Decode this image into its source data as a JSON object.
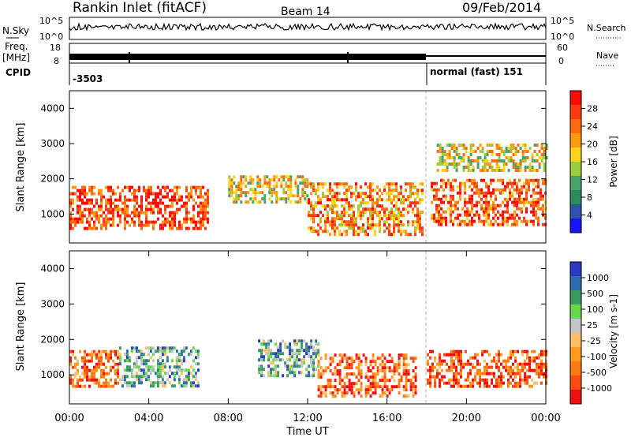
{
  "header": {
    "title": "Rankin Inlet (fitACF)",
    "beam": "Beam 14",
    "date": "09/Feb/2014"
  },
  "status_panels": {
    "nsky_label": "N.Sky",
    "nsky_ticks": [
      "10^5",
      "10^0"
    ],
    "nsearch_label": "N.Search",
    "nsearch_ticks": [
      "10^5",
      "10^0"
    ],
    "freq_label": "Freq.",
    "freq_unit": "[MHz]",
    "freq_ticks": [
      "18",
      "8"
    ],
    "nave_label": "Nave",
    "nave_ticks": [
      "60",
      "0"
    ],
    "cpid_label": "CPID",
    "cpid_value": "-3503",
    "mode_label": "normal (fast) 151",
    "mode_start_hour": 18
  },
  "colors": {
    "power_scale": [
      "#1414ff",
      "#2e50b4",
      "#2c8a5e",
      "#4aa26a",
      "#9ccc3c",
      "#ffd21c",
      "#ff9a10",
      "#ff6a10",
      "#ff3a10",
      "#ff0a0a"
    ],
    "velocity_scale": [
      "#ee1010",
      "#ff4a10",
      "#ff7a10",
      "#ff9a20",
      "#ffbf6a",
      "#c4c4c4",
      "#68d84a",
      "#3b9a5e",
      "#2e6cb0",
      "#2a3ac0"
    ],
    "range_gate_line": "#b0b0b0"
  },
  "chart_data": [
    {
      "type": "heatmap",
      "name": "power",
      "ylabel": "Slant Range [km]",
      "yticks": [
        "1000",
        "2000",
        "3000",
        "4000"
      ],
      "ylim": [
        180,
        4500
      ],
      "xlim_hours": [
        0,
        24
      ],
      "colorbar_label": "Power [dB]",
      "colorbar_ticks": [
        "4",
        "8",
        "12",
        "16",
        "20",
        "24",
        "28"
      ],
      "colorbar_range": [
        0,
        32
      ],
      "echo_bands": [
        {
          "t0": 0.0,
          "t1": 7.0,
          "r0": 600,
          "r1": 1800,
          "level": 0.85
        },
        {
          "t0": 8.0,
          "t1": 12.0,
          "r0": 1300,
          "r1": 2100,
          "level": 0.55
        },
        {
          "t0": 12.0,
          "t1": 17.8,
          "r0": 400,
          "r1": 1900,
          "level": 0.7
        },
        {
          "t0": 18.2,
          "t1": 24.0,
          "r0": 700,
          "r1": 2000,
          "level": 0.8
        },
        {
          "t0": 18.5,
          "t1": 24.0,
          "r0": 2200,
          "r1": 3000,
          "level": 0.55
        }
      ]
    },
    {
      "type": "heatmap",
      "name": "velocity",
      "ylabel": "Slant Range [km]",
      "yticks": [
        "1000",
        "2000",
        "3000",
        "4000"
      ],
      "ylim": [
        180,
        4500
      ],
      "xlim_hours": [
        0,
        24
      ],
      "colorbar_label": "Velocity [m s-1]",
      "colorbar_ticks": [
        "1000",
        "500",
        "100",
        "25",
        "-25",
        "-100",
        "-500",
        "-1000"
      ],
      "xlabel": "Time UT",
      "xticks": [
        "00:00",
        "04:00",
        "08:00",
        "12:00",
        "16:00",
        "20:00",
        "00:00"
      ],
      "echo_bands": [
        {
          "t0": 0.0,
          "t1": 2.5,
          "r0": 700,
          "r1": 1700,
          "level": -0.5
        },
        {
          "t0": 2.5,
          "t1": 6.5,
          "r0": 700,
          "r1": 1800,
          "level": 0.4
        },
        {
          "t0": 9.5,
          "t1": 12.5,
          "r0": 1000,
          "r1": 2000,
          "level": 0.4
        },
        {
          "t0": 12.5,
          "t1": 17.5,
          "r0": 400,
          "r1": 1600,
          "level": -0.6
        },
        {
          "t0": 18.0,
          "t1": 24.0,
          "r0": 700,
          "r1": 1700,
          "level": -0.65
        }
      ]
    }
  ]
}
